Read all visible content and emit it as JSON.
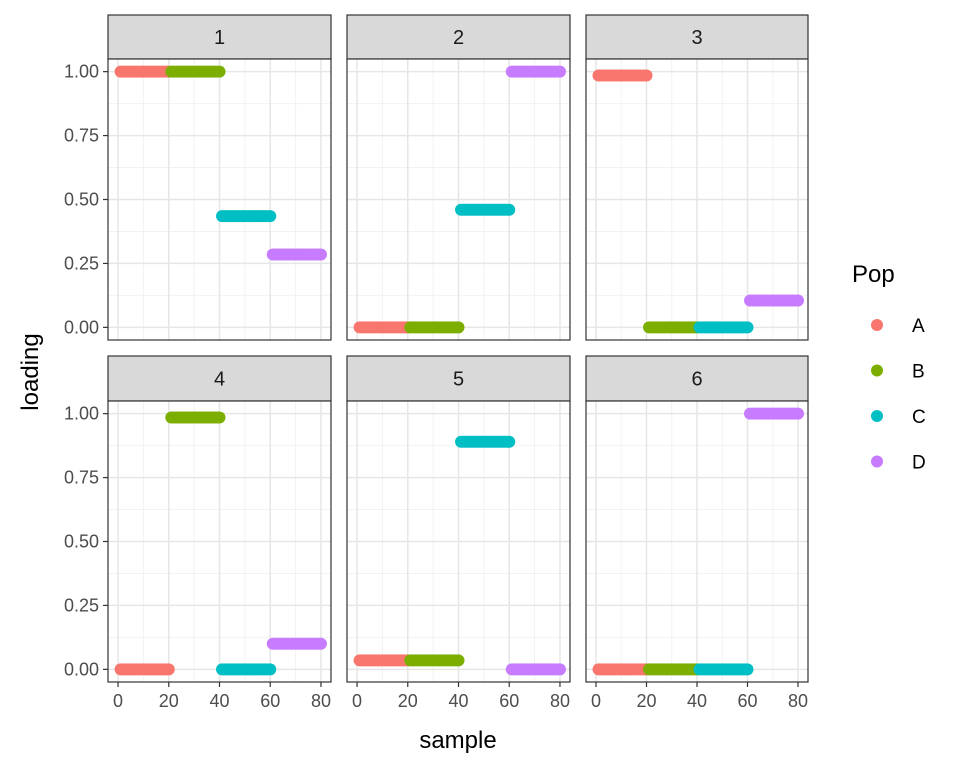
{
  "chart_data": {
    "type": "scatter",
    "title": "",
    "xlabel": "sample",
    "ylabel": "loading",
    "xlim": [
      0,
      80
    ],
    "ylim": [
      0,
      1
    ],
    "x_ticks": [
      0,
      20,
      40,
      60,
      80
    ],
    "y_ticks": [
      "0.00",
      "0.25",
      "0.50",
      "0.75",
      "1.00"
    ],
    "grid": true,
    "legend": {
      "title": "Pop",
      "position": "right",
      "entries": [
        {
          "name": "A",
          "color": "#F8766D"
        },
        {
          "name": "B",
          "color": "#7CAE00"
        },
        {
          "name": "C",
          "color": "#00BFC4"
        },
        {
          "name": "D",
          "color": "#C77CFF"
        }
      ]
    },
    "populations": [
      {
        "name": "A",
        "x_range": [
          1,
          20
        ]
      },
      {
        "name": "B",
        "x_range": [
          21,
          40
        ]
      },
      {
        "name": "C",
        "x_range": [
          41,
          60
        ]
      },
      {
        "name": "D",
        "x_range": [
          61,
          80
        ]
      }
    ],
    "facets": [
      {
        "label": "1",
        "values": {
          "A": 1.0,
          "B": 1.0,
          "C": 0.435,
          "D": 0.285
        }
      },
      {
        "label": "2",
        "values": {
          "A": 0.0,
          "B": 0.0,
          "C": 0.46,
          "D": 1.0
        }
      },
      {
        "label": "3",
        "values": {
          "A": 0.985,
          "B": 0.0,
          "C": 0.0,
          "D": 0.105
        }
      },
      {
        "label": "4",
        "values": {
          "A": 0.0,
          "B": 0.985,
          "C": 0.0,
          "D": 0.1
        }
      },
      {
        "label": "5",
        "values": {
          "A": 0.035,
          "B": 0.035,
          "C": 0.89,
          "D": 0.0
        }
      },
      {
        "label": "6",
        "values": {
          "A": 0.0,
          "B": 0.0,
          "C": 0.0,
          "D": 1.0
        }
      }
    ]
  }
}
